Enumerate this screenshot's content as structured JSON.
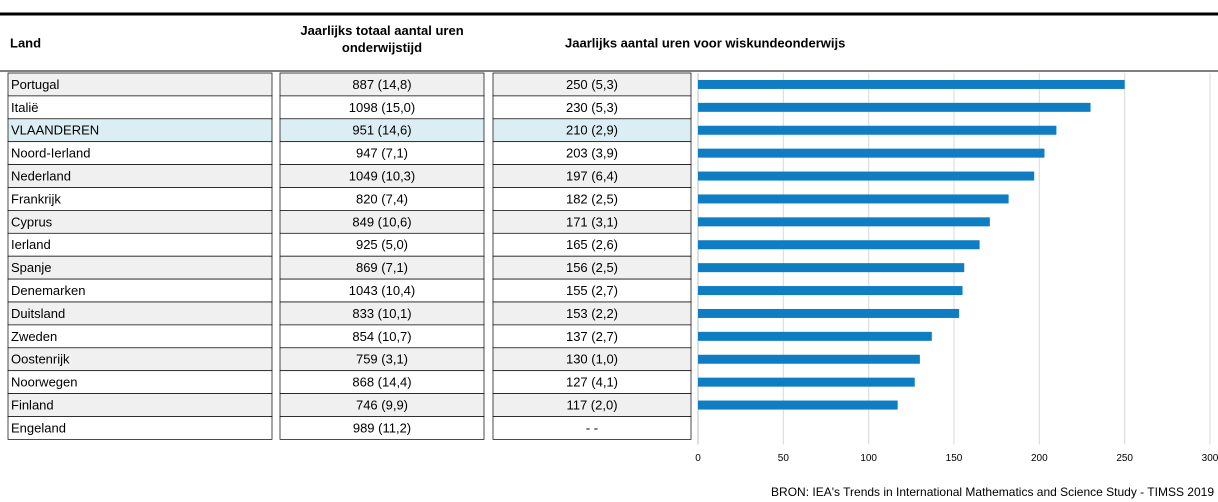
{
  "table": {
    "headers": [
      "Land",
      "Jaarlijks totaal aantal uren onderwijstijd",
      "Jaarlijks aantal uren voor wiskundeonderwijs"
    ],
    "highlight_row": 2,
    "rows": [
      [
        "Portugal",
        "887 (14,8)",
        "250 (5,3)"
      ],
      [
        "Italië",
        "1098 (15,0)",
        "230 (5,3)"
      ],
      [
        "VLAANDEREN",
        "951 (14,6)",
        "210 (2,9)"
      ],
      [
        "Noord-Ierland",
        "947 (7,1)",
        "203 (3,9)"
      ],
      [
        "Nederland",
        "1049 (10,3)",
        "197 (6,4)"
      ],
      [
        "Frankrijk",
        "820 (7,4)",
        "182 (2,5)"
      ],
      [
        "Cyprus",
        "849 (10,6)",
        "171 (3,1)"
      ],
      [
        "Ierland",
        "925 (5,0)",
        "165 (2,6)"
      ],
      [
        "Spanje",
        "869 (7,1)",
        "156 (2,5)"
      ],
      [
        "Denemarken",
        "1043 (10,4)",
        "155 (2,7)"
      ],
      [
        "Duitsland",
        "833 (10,1)",
        "153 (2,2)"
      ],
      [
        "Zweden",
        "854 (10,7)",
        "137 (2,7)"
      ],
      [
        "Oostenrijk",
        "759 (3,1)",
        "130 (1,0)"
      ],
      [
        "Noorwegen",
        "868 (14,4)",
        "127 (4,1)"
      ],
      [
        "Finland",
        "746 (9,9)",
        "117 (2,0)"
      ],
      [
        "Engeland",
        "989 (11,2)",
        "- -"
      ]
    ]
  },
  "chart_data": {
    "type": "bar",
    "orientation": "horizontal",
    "values": [
      250,
      230,
      210,
      203,
      197,
      182,
      171,
      165,
      156,
      155,
      153,
      137,
      130,
      127,
      117,
      null
    ],
    "color": "#0e7dc2",
    "xlim": [
      0,
      300
    ],
    "xticks": [
      0,
      50,
      100,
      150,
      200,
      250,
      300
    ],
    "grid": true,
    "source": "BRON:  IEA's Trends in International Mathematics and Science Study - TIMSS 2019"
  }
}
